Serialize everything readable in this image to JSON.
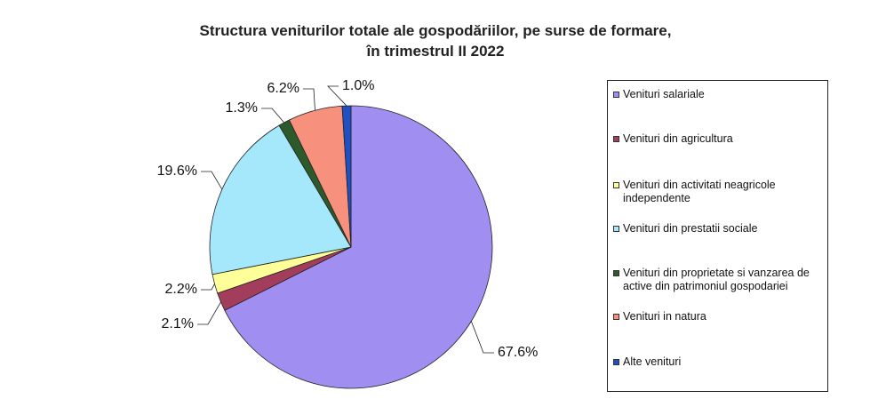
{
  "chart_data": {
    "type": "pie",
    "title": [
      "Structura veniturilor totale ale gospodăriilor, pe surse de formare,",
      "în trimestrul II 2022"
    ],
    "categories": [
      "Venituri salariale",
      "Venituri din agricultura",
      "Venituri din activitati neagricole independente",
      "Venituri din prestatii sociale",
      "Venituri din proprietate si vanzarea de active din patrimoniul gospodariei",
      "Venituri in natura",
      "Alte venituri"
    ],
    "values": [
      67.6,
      2.1,
      2.2,
      19.6,
      1.3,
      6.2,
      1.0
    ],
    "value_labels": [
      "67.6%",
      "2.1%",
      "2.2%",
      "19.6%",
      "1.3%",
      "6.2%",
      "1.0%"
    ],
    "colors": [
      "#a08ef0",
      "#a23e5c",
      "#ffff99",
      "#a6e8fb",
      "#2d5a2a",
      "#f7907c",
      "#1f4fc0"
    ],
    "legend": "right"
  }
}
